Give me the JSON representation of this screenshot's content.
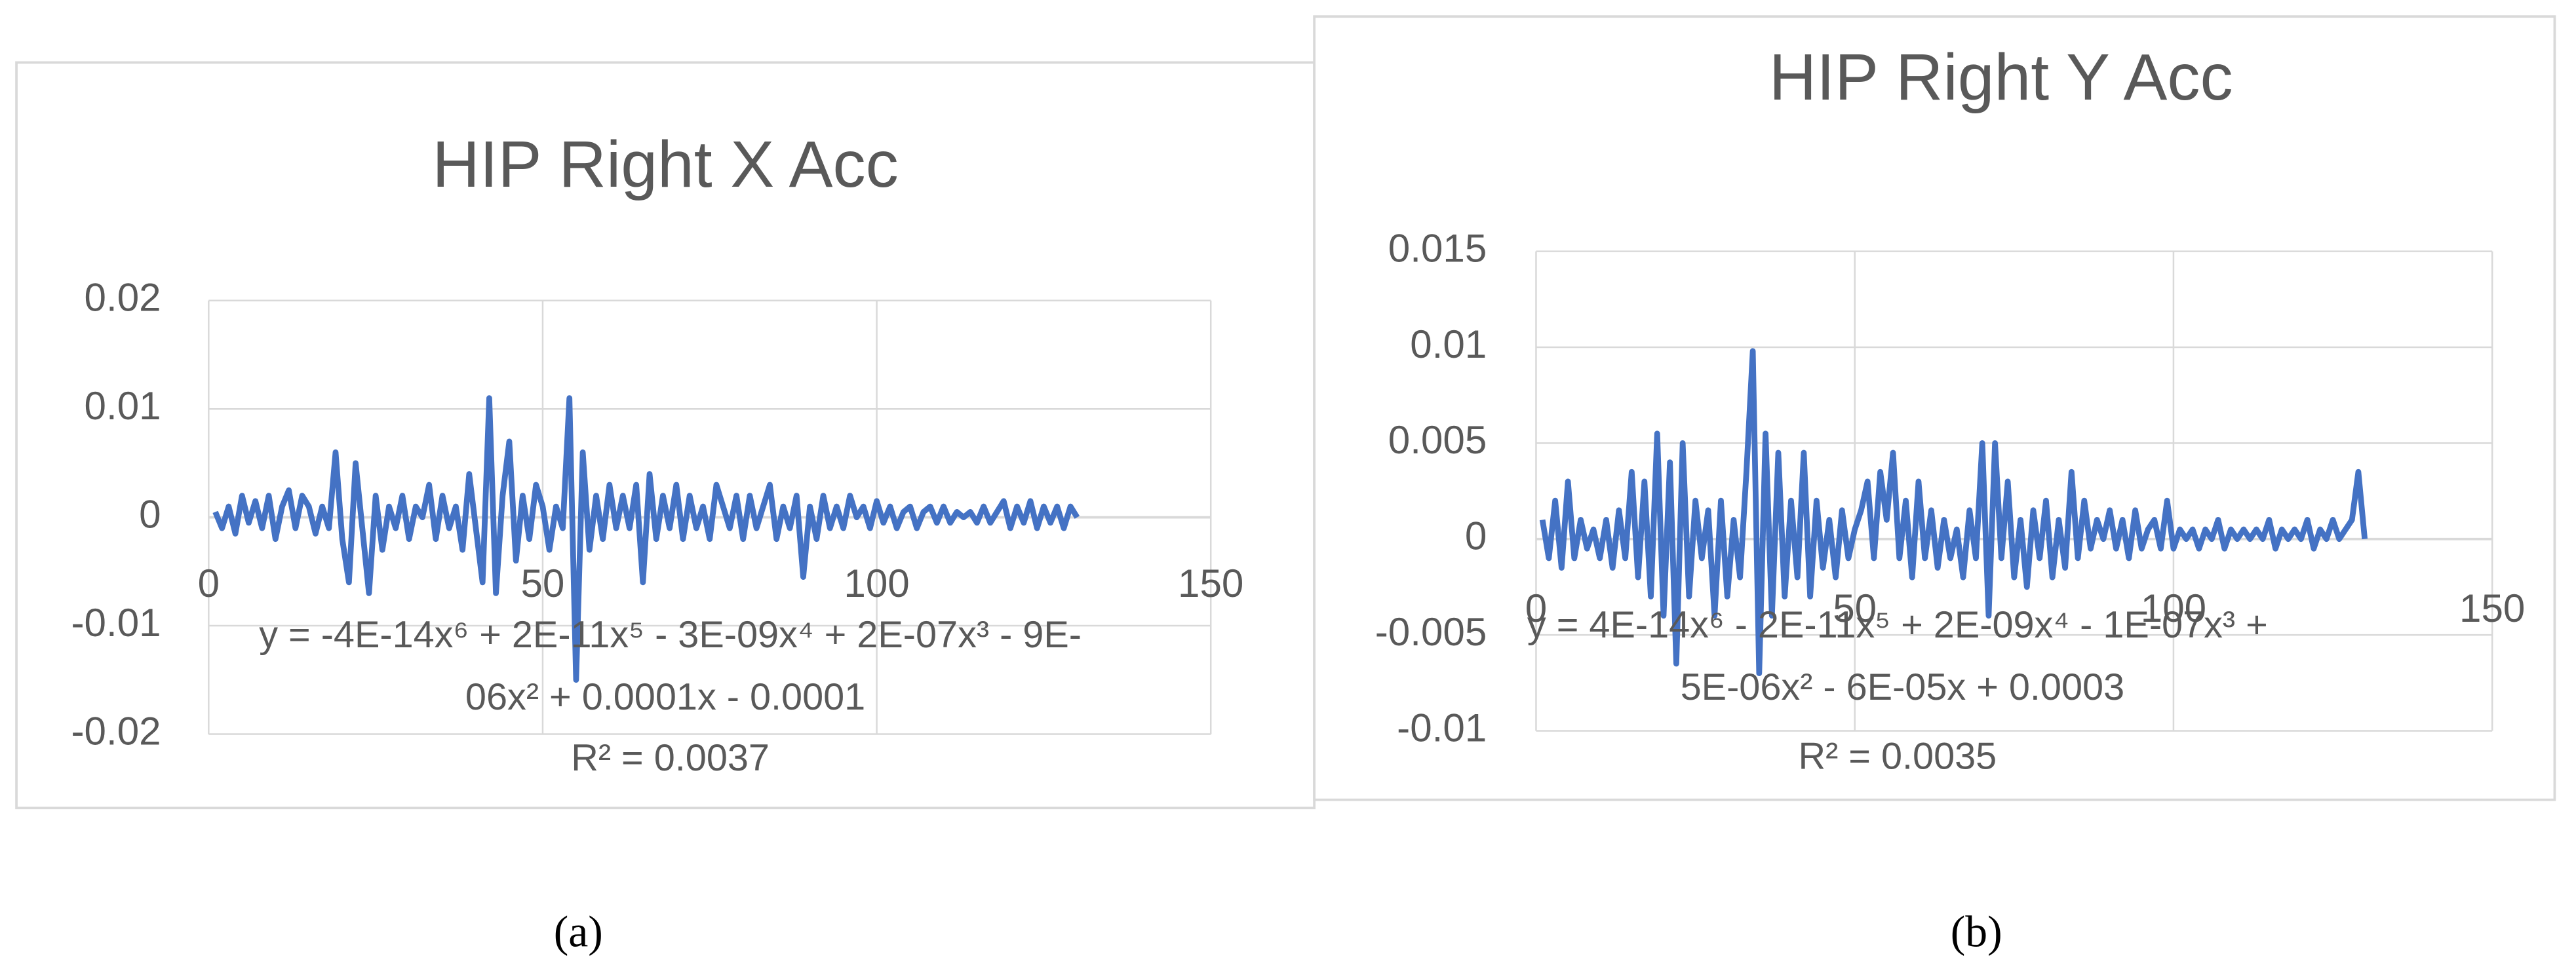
{
  "chart_data": [
    {
      "type": "line",
      "title": "HIP Right X Acc",
      "caption": "(a)",
      "trendline_label": [
        "y = -4E-14x⁶ + 2E-11x⁵ - 3E-09x⁴ + 2E-07x³ - 9E-",
        "06x² + 0.0001x - 0.0001",
        "R² = 0.0037"
      ],
      "xlim": [
        0,
        150
      ],
      "xticks": [
        0,
        50,
        100,
        150
      ],
      "ylim": [
        -0.02,
        0.02
      ],
      "yticks": [
        -0.02,
        -0.01,
        0,
        0.01,
        0.02
      ],
      "grid": true,
      "color": "#4472c4",
      "x": [
        1,
        2,
        3,
        4,
        5,
        6,
        7,
        8,
        9,
        10,
        11,
        12,
        13,
        14,
        15,
        16,
        17,
        18,
        19,
        20,
        21,
        22,
        23,
        24,
        25,
        26,
        27,
        28,
        29,
        30,
        31,
        32,
        33,
        34,
        35,
        36,
        37,
        38,
        39,
        40,
        41,
        42,
        43,
        44,
        45,
        46,
        47,
        48,
        49,
        50,
        51,
        52,
        53,
        54,
        55,
        56,
        57,
        58,
        59,
        60,
        61,
        62,
        63,
        64,
        65,
        66,
        67,
        68,
        69,
        70,
        71,
        72,
        73,
        74,
        75,
        76,
        77,
        78,
        79,
        80,
        81,
        82,
        83,
        84,
        85,
        86,
        87,
        88,
        89,
        90,
        91,
        92,
        93,
        94,
        95,
        96,
        97,
        98,
        99,
        100,
        101,
        102,
        103,
        104,
        105,
        106,
        107,
        108,
        109,
        110,
        111,
        112,
        113,
        114,
        115,
        116,
        117,
        118,
        119,
        120,
        121,
        122,
        123,
        124,
        125,
        126,
        127,
        128,
        129,
        130
      ],
      "values": [
        0.0005,
        -0.001,
        0.001,
        -0.0015,
        0.002,
        -0.0005,
        0.0015,
        -0.001,
        0.002,
        -0.002,
        0.001,
        0.0025,
        -0.001,
        0.002,
        0.001,
        -0.0015,
        0.001,
        -0.001,
        0.006,
        -0.002,
        -0.006,
        0.005,
        -0.001,
        -0.007,
        0.002,
        -0.003,
        0.001,
        -0.001,
        0.002,
        -0.002,
        0.001,
        0,
        0.003,
        -0.002,
        0.002,
        -0.001,
        0.001,
        -0.003,
        0.004,
        -0.001,
        -0.006,
        0.011,
        -0.007,
        0.002,
        0.007,
        -0.004,
        0.002,
        -0.002,
        0.003,
        0.001,
        -0.003,
        0.001,
        -0.001,
        0.011,
        -0.015,
        0.006,
        -0.003,
        0.002,
        -0.002,
        0.003,
        -0.001,
        0.002,
        -0.001,
        0.003,
        -0.006,
        0.004,
        -0.002,
        0.002,
        -0.001,
        0.003,
        -0.002,
        0.002,
        -0.001,
        0.001,
        -0.002,
        0.003,
        0.001,
        -0.001,
        0.002,
        -0.002,
        0.002,
        -0.001,
        0.001,
        0.003,
        -0.002,
        0.001,
        -0.001,
        0.002,
        -0.0055,
        0.001,
        -0.002,
        0.002,
        -0.001,
        0.001,
        -0.001,
        0.002,
        0,
        0.001,
        -0.001,
        0.0015,
        -0.0005,
        0.001,
        -0.001,
        0.0005,
        0.001,
        -0.001,
        0.0005,
        0.001,
        -0.0005,
        0.001,
        -0.0005,
        0.0005,
        0,
        0.0005,
        -0.0005,
        0.001,
        -0.0005,
        0.0005,
        0.0015,
        -0.001,
        0.001,
        -0.0005,
        0.0015,
        -0.001,
        0.001,
        -0.0005,
        0.001,
        -0.001,
        0.001,
        0
      ]
    },
    {
      "type": "line",
      "title": "HIP Right Y Acc",
      "caption": "(b)",
      "trendline_label": [
        "y = 4E-14x⁶ - 2E-11x⁵ + 2E-09x⁴ - 1E-07x³ +",
        "5E-06x² - 6E-05x + 0.0003",
        "R² = 0.0035"
      ],
      "xlim": [
        0,
        150
      ],
      "xticks": [
        0,
        50,
        100,
        150
      ],
      "ylim": [
        -0.01,
        0.015
      ],
      "yticks": [
        -0.01,
        -0.005,
        0,
        0.005,
        0.01,
        0.015
      ],
      "grid": true,
      "color": "#4472c4",
      "x": [
        1,
        2,
        3,
        4,
        5,
        6,
        7,
        8,
        9,
        10,
        11,
        12,
        13,
        14,
        15,
        16,
        17,
        18,
        19,
        20,
        21,
        22,
        23,
        24,
        25,
        26,
        27,
        28,
        29,
        30,
        31,
        32,
        33,
        34,
        35,
        36,
        37,
        38,
        39,
        40,
        41,
        42,
        43,
        44,
        45,
        46,
        47,
        48,
        49,
        50,
        51,
        52,
        53,
        54,
        55,
        56,
        57,
        58,
        59,
        60,
        61,
        62,
        63,
        64,
        65,
        66,
        67,
        68,
        69,
        70,
        71,
        72,
        73,
        74,
        75,
        76,
        77,
        78,
        79,
        80,
        81,
        82,
        83,
        84,
        85,
        86,
        87,
        88,
        89,
        90,
        91,
        92,
        93,
        94,
        95,
        96,
        97,
        98,
        99,
        100,
        101,
        102,
        103,
        104,
        105,
        106,
        107,
        108,
        109,
        110,
        111,
        112,
        113,
        114,
        115,
        116,
        117,
        118,
        119,
        120,
        121,
        122,
        123,
        124,
        125,
        126,
        127,
        128,
        129,
        130
      ],
      "values": [
        0.001,
        -0.001,
        0.002,
        -0.0015,
        0.003,
        -0.001,
        0.001,
        -0.0005,
        0.0005,
        -0.001,
        0.001,
        -0.0015,
        0.0015,
        -0.001,
        0.0035,
        -0.002,
        0.003,
        -0.003,
        0.0055,
        -0.004,
        0.004,
        -0.0065,
        0.005,
        -0.003,
        0.002,
        -0.001,
        0.0015,
        -0.004,
        0.002,
        -0.003,
        0.001,
        -0.002,
        0.0035,
        0.0098,
        -0.007,
        0.0055,
        -0.004,
        0.0045,
        -0.003,
        0.002,
        -0.002,
        0.0045,
        -0.003,
        0.002,
        -0.0015,
        0.001,
        -0.002,
        0.0015,
        -0.001,
        0.0005,
        0.0015,
        0.003,
        -0.001,
        0.0035,
        0.001,
        0.0045,
        -0.001,
        0.002,
        -0.002,
        0.003,
        -0.001,
        0.0015,
        -0.0015,
        0.001,
        -0.001,
        0.0005,
        -0.002,
        0.0015,
        -0.001,
        0.005,
        -0.004,
        0.005,
        -0.001,
        0.003,
        -0.002,
        0.001,
        -0.0025,
        0.0015,
        -0.001,
        0.002,
        -0.002,
        0.001,
        -0.0015,
        0.0035,
        -0.001,
        0.002,
        -0.0005,
        0.001,
        0,
        0.0015,
        -0.0005,
        0.001,
        -0.001,
        0.0015,
        -0.0005,
        0.0005,
        0.001,
        -0.0005,
        0.002,
        -0.0005,
        0.0005,
        0,
        0.0005,
        -0.0005,
        0.0005,
        0,
        0.001,
        -0.0005,
        0.0005,
        0,
        0.0005,
        0,
        0.0005,
        0,
        0.001,
        -0.0005,
        0.0005,
        0,
        0.0005,
        0,
        0.001,
        -0.0005,
        0.0005,
        0,
        0.001,
        0,
        0.0005,
        0.001,
        0.0035,
        0
      ]
    }
  ]
}
